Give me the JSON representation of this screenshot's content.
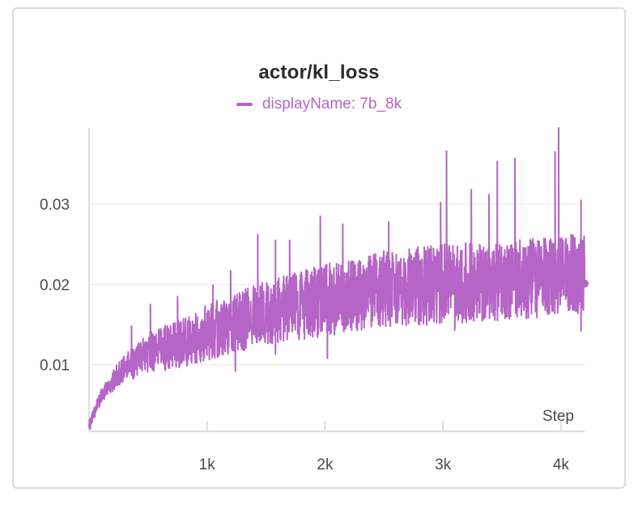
{
  "panel": {
    "title": "actor/kl_loss"
  },
  "chart_data": {
    "type": "line",
    "title": "actor/kl_loss",
    "xlabel": "Step",
    "ylabel": "",
    "x_range": [
      0,
      4200
    ],
    "y_range": [
      0.0017,
      0.0395
    ],
    "grid": true,
    "legend_position": "top-center",
    "x_ticks": [
      {
        "value": 1000,
        "label": "1k"
      },
      {
        "value": 2000,
        "label": "2k"
      },
      {
        "value": 3000,
        "label": "3k"
      },
      {
        "value": 4000,
        "label": "4k"
      }
    ],
    "y_ticks": [
      {
        "value": 0.01,
        "label": "0.01"
      },
      {
        "value": 0.02,
        "label": "0.02"
      },
      {
        "value": 0.03,
        "label": "0.03"
      }
    ],
    "series": [
      {
        "name": "displayName: 7b_8k",
        "color": "#b565c6",
        "trend": {
          "x": [
            0,
            100,
            200,
            300,
            500,
            750,
            1000,
            1500,
            2000,
            2500,
            3000,
            3500,
            4000,
            4200
          ],
          "y": [
            0.0025,
            0.006,
            0.008,
            0.0095,
            0.0115,
            0.0125,
            0.014,
            0.0165,
            0.018,
            0.0195,
            0.02,
            0.0205,
            0.021,
            0.0215
          ]
        },
        "band": {
          "x": [
            0,
            500,
            1000,
            1500,
            2000,
            3000,
            4200
          ],
          "y": [
            0.0005,
            0.0025,
            0.0035,
            0.004,
            0.0045,
            0.005,
            0.005
          ]
        },
        "points": [
          {
            "x": 10,
            "y": 0.002
          },
          {
            "x": 50,
            "y": 0.0035
          },
          {
            "x": 150,
            "y": 0.0065
          },
          {
            "x": 360,
            "y": 0.0148
          },
          {
            "x": 520,
            "y": 0.0175
          },
          {
            "x": 750,
            "y": 0.0185
          },
          {
            "x": 1050,
            "y": 0.0199
          },
          {
            "x": 1200,
            "y": 0.0217
          },
          {
            "x": 1240,
            "y": 0.0092
          },
          {
            "x": 1430,
            "y": 0.0262
          },
          {
            "x": 1580,
            "y": 0.0255
          },
          {
            "x": 1580,
            "y": 0.0113
          },
          {
            "x": 1700,
            "y": 0.0255
          },
          {
            "x": 1960,
            "y": 0.0285
          },
          {
            "x": 2020,
            "y": 0.0108
          },
          {
            "x": 2150,
            "y": 0.0275
          },
          {
            "x": 2540,
            "y": 0.0278
          },
          {
            "x": 2980,
            "y": 0.0302
          },
          {
            "x": 3030,
            "y": 0.0366
          },
          {
            "x": 3100,
            "y": 0.0143
          },
          {
            "x": 3240,
            "y": 0.0318
          },
          {
            "x": 3390,
            "y": 0.0312
          },
          {
            "x": 3460,
            "y": 0.0353
          },
          {
            "x": 3610,
            "y": 0.0357
          },
          {
            "x": 3950,
            "y": 0.0365
          },
          {
            "x": 3980,
            "y": 0.0395
          },
          {
            "x": 4170,
            "y": 0.0305
          },
          {
            "x": 4170,
            "y": 0.0142
          },
          {
            "x": 4200,
            "y": 0.0201
          }
        ],
        "last_value": {
          "x": 4200,
          "y": 0.0201
        }
      }
    ]
  }
}
